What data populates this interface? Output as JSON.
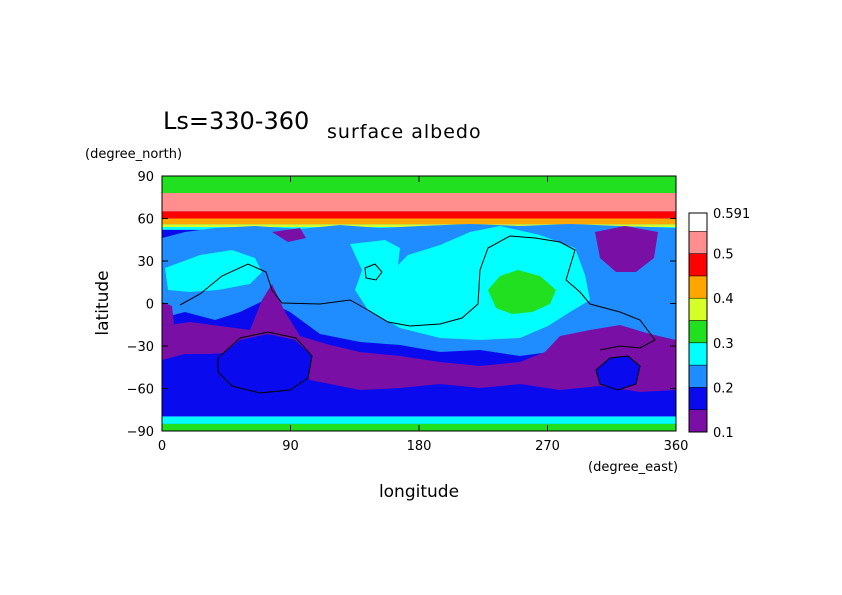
{
  "chart_data": {
    "type": "heatmap",
    "title": "Ls=330-360",
    "subtitle": "surface albedo",
    "xlabel": "longitude",
    "ylabel": "latitude",
    "x_unit": "(degree_east)",
    "y_unit": "(degree_north)",
    "xlim": [
      0,
      360
    ],
    "ylim": [
      -90,
      90
    ],
    "xticks": [
      0,
      90,
      180,
      270,
      360
    ],
    "yticks": [
      90,
      60,
      30,
      0,
      -30,
      -60,
      -90
    ],
    "grid": false,
    "colorbar": {
      "levels": [
        0.1,
        0.15,
        0.2,
        0.25,
        0.3,
        0.35,
        0.4,
        0.45,
        0.5,
        0.55,
        0.591
      ],
      "labels": [
        "0.1",
        "0.2",
        "0.3",
        "0.4",
        "0.5",
        "0.591"
      ],
      "colors": [
        "#7a0fa5",
        "#0a0aee",
        "#1f8cff",
        "#00ffff",
        "#20e020",
        "#d6ff2a",
        "#ffa500",
        "#ff0000",
        "#ff8f8f"
      ]
    },
    "zonal_bands": [
      {
        "lat_min": 78,
        "lat_max": 90,
        "value": 0.37,
        "color": "#20e020"
      },
      {
        "lat_min": 65,
        "lat_max": 78,
        "value": 0.57,
        "color": "#ff8f8f"
      },
      {
        "lat_min": 60,
        "lat_max": 65,
        "value": 0.52,
        "color": "#ff0000"
      },
      {
        "lat_min": 56,
        "lat_max": 60,
        "value": 0.47,
        "color": "#ffa500"
      },
      {
        "lat_min": 54,
        "lat_max": 56,
        "value": 0.42,
        "color": "#d6ff2a"
      },
      {
        "lat_min": 52,
        "lat_max": 54,
        "value": 0.32,
        "color": "#00ffff"
      },
      {
        "lat_min": -80,
        "lat_max": -70,
        "value": 0.22,
        "color": "#1f8cff"
      },
      {
        "lat_min": -85,
        "lat_max": -80,
        "value": 0.32,
        "color": "#00ffff"
      },
      {
        "lat_min": -90,
        "lat_max": -85,
        "value": 0.37,
        "color": "#20e020"
      }
    ]
  }
}
